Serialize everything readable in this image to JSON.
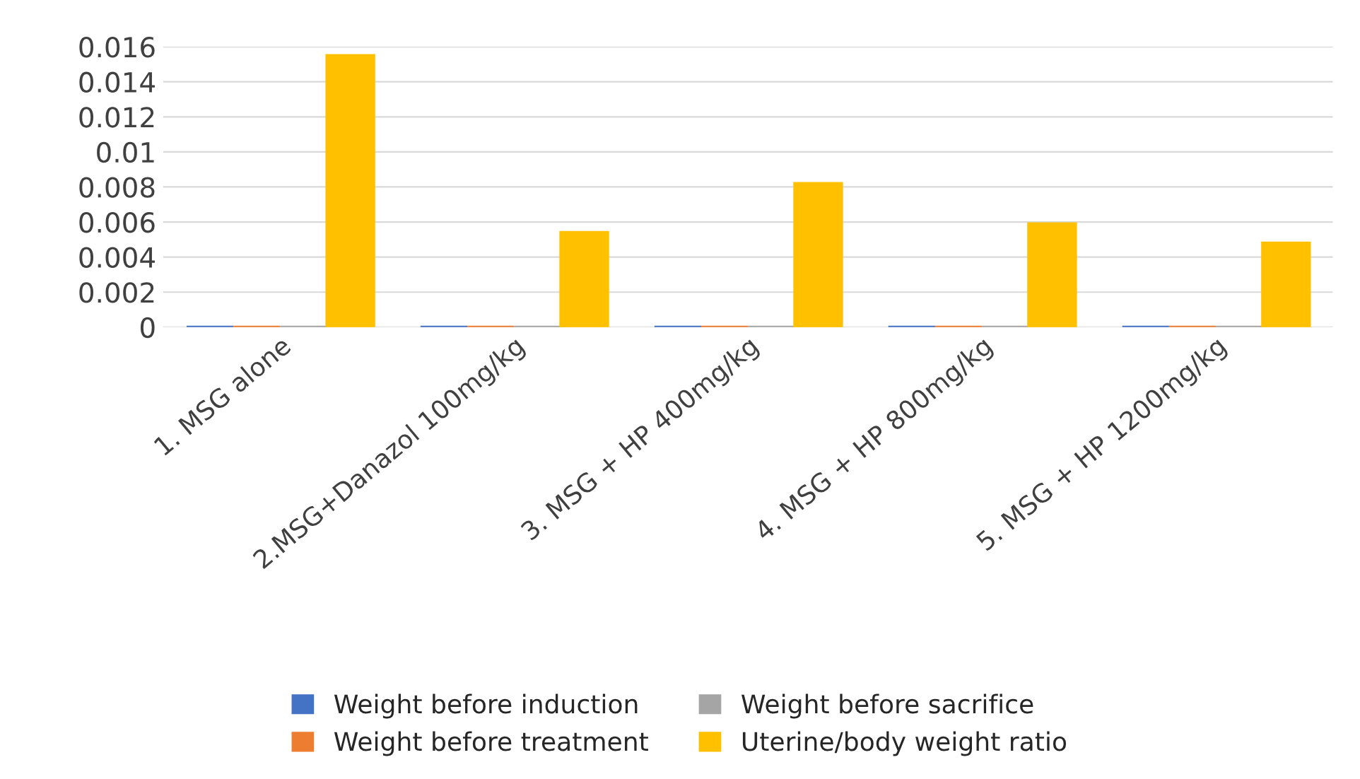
{
  "chart_data": {
    "type": "bar",
    "categories": [
      "1. MSG alone",
      "2.MSG+Danazol 100mg/kg",
      "3. MSG + HP 400mg/kg",
      "4. MSG + HP 800mg/kg",
      "5. MSG + HP 1200mg/kg"
    ],
    "series": [
      {
        "name": "Weight before induction",
        "color": "#4472c4",
        "values": [
          0,
          0,
          0,
          0,
          0
        ]
      },
      {
        "name": "Weight before treatment",
        "color": "#ed7d31",
        "values": [
          0,
          0,
          0,
          0,
          0
        ]
      },
      {
        "name": "Weight before sacrifice",
        "color": "#a5a5a5",
        "values": [
          0,
          0,
          0,
          0,
          0
        ]
      },
      {
        "name": "Uterine/body weight ratio",
        "color": "#ffc000",
        "values": [
          0.0155,
          0.0054,
          0.0082,
          0.0059,
          0.0048
        ]
      }
    ],
    "ylim": [
      0,
      0.016
    ],
    "yticks": [
      0,
      0.002,
      0.004,
      0.006,
      0.008,
      0.01,
      0.012,
      0.014,
      0.016
    ],
    "grid": "y",
    "legend": "bottom"
  }
}
